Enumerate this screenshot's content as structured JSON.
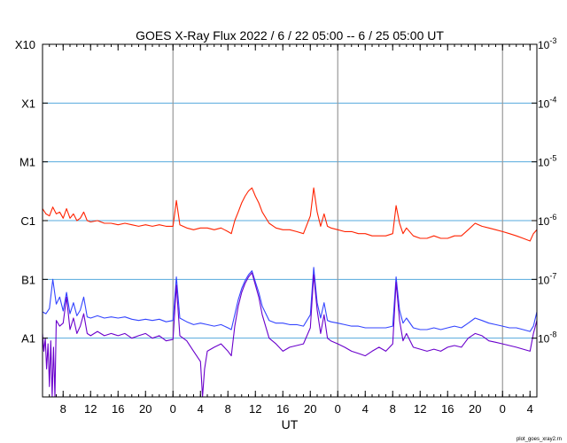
{
  "chart_data": {
    "type": "line",
    "title": "GOES X-Ray Flux   2022  /  6  /  22    05:00 --   6  /  25    05:00    UT",
    "xlabel": "UT",
    "footer": "plot_goes_xray2.rn",
    "x_range_hours": [
      0,
      72
    ],
    "y_scale": "log",
    "ylim": [
      1e-09,
      0.001
    ],
    "grid": true,
    "day_separators_hours": [
      19,
      43,
      67
    ],
    "x_ticks": [
      {
        "h": 3,
        "label": "8"
      },
      {
        "h": 7,
        "label": "12"
      },
      {
        "h": 11,
        "label": "16"
      },
      {
        "h": 15,
        "label": "20"
      },
      {
        "h": 19,
        "label": "0"
      },
      {
        "h": 23,
        "label": "4"
      },
      {
        "h": 27,
        "label": "8"
      },
      {
        "h": 31,
        "label": "12"
      },
      {
        "h": 35,
        "label": "16"
      },
      {
        "h": 39,
        "label": "20"
      },
      {
        "h": 43,
        "label": "0"
      },
      {
        "h": 47,
        "label": "4"
      },
      {
        "h": 51,
        "label": "8"
      },
      {
        "h": 55,
        "label": "12"
      },
      {
        "h": 59,
        "label": "16"
      },
      {
        "h": 63,
        "label": "20"
      },
      {
        "h": 67,
        "label": "0"
      },
      {
        "h": 71,
        "label": "4"
      }
    ],
    "class_labels": [
      {
        "v": 0.001,
        "label": "X10"
      },
      {
        "v": 0.0001,
        "label": "X1"
      },
      {
        "v": 1e-05,
        "label": "M1"
      },
      {
        "v": 1e-06,
        "label": "C1"
      },
      {
        "v": 1e-07,
        "label": "B1"
      },
      {
        "v": 1e-08,
        "label": "A1"
      }
    ],
    "right_labels": [
      {
        "v": 0.001,
        "exp": "-3"
      },
      {
        "v": 0.0001,
        "exp": "-4"
      },
      {
        "v": 1e-05,
        "exp": "-5"
      },
      {
        "v": 1e-06,
        "exp": "-6"
      },
      {
        "v": 1e-07,
        "exp": "-7"
      },
      {
        "v": 1e-08,
        "exp": "-8"
      }
    ],
    "right_base": "10",
    "series": [
      {
        "color": "#ff2200",
        "x": [
          0,
          0.5,
          1,
          1.5,
          2,
          2.5,
          3,
          3.5,
          4,
          4.5,
          5,
          5.5,
          6,
          6.5,
          7,
          8,
          9,
          10,
          11,
          12,
          13,
          14,
          15,
          16,
          17,
          18,
          19,
          19.5,
          20,
          21,
          22,
          23,
          24,
          25,
          26,
          27,
          27.5,
          28,
          28.5,
          29,
          29.5,
          30,
          30.5,
          31,
          31.5,
          32,
          33,
          34,
          35,
          36,
          37,
          38,
          39,
          39.5,
          40,
          40.5,
          41,
          41.5,
          42,
          43,
          44,
          45,
          46,
          47,
          48,
          49,
          50,
          51,
          51.5,
          52,
          52.5,
          53,
          54,
          55,
          56,
          57,
          58,
          59,
          60,
          61,
          62,
          63,
          64,
          65,
          66,
          67,
          68,
          69,
          70,
          71,
          71.5,
          72
        ],
        "y": [
          1.6e-06,
          1.3e-06,
          1.2e-06,
          1.7e-06,
          1.3e-06,
          1.4e-06,
          1.1e-06,
          1.6e-06,
          1.1e-06,
          1.3e-06,
          1e-06,
          1.1e-06,
          1.4e-06,
          1e-06,
          9.5e-07,
          1e-06,
          9e-07,
          9e-07,
          8.5e-07,
          9e-07,
          8.5e-07,
          8e-07,
          8.5e-07,
          8e-07,
          8.5e-07,
          8e-07,
          8e-07,
          2.2e-06,
          8.5e-07,
          7.5e-07,
          7e-07,
          7.5e-07,
          7.5e-07,
          7e-07,
          7.5e-07,
          6.5e-07,
          6e-07,
          1e-06,
          1.4e-06,
          2e-06,
          2.6e-06,
          3.2e-06,
          3.6e-06,
          2.6e-06,
          2e-06,
          1.4e-06,
          9e-07,
          7.5e-07,
          7e-07,
          7e-07,
          6.5e-07,
          6e-07,
          1.2e-06,
          3.6e-06,
          1.4e-06,
          8e-07,
          1.3e-06,
          8e-07,
          7.5e-07,
          7e-07,
          6.5e-07,
          6.5e-07,
          6e-07,
          6e-07,
          5.5e-07,
          5.5e-07,
          5.5e-07,
          6e-07,
          1.8e-06,
          9e-07,
          6e-07,
          7.5e-07,
          5.5e-07,
          5e-07,
          5e-07,
          5.5e-07,
          5e-07,
          5e-07,
          5.5e-07,
          5.5e-07,
          7e-07,
          9e-07,
          8e-07,
          7.5e-07,
          7e-07,
          6.5e-07,
          6e-07,
          5.5e-07,
          5e-07,
          4.5e-07,
          6e-07,
          7e-07
        ]
      },
      {
        "color": "#3344ff",
        "x": [
          0,
          0.5,
          1,
          1.5,
          2,
          2.5,
          3,
          3.5,
          4,
          4.5,
          5,
          5.5,
          6,
          6.5,
          7,
          8,
          9,
          10,
          11,
          12,
          13,
          14,
          15,
          16,
          17,
          18,
          19,
          19.5,
          20,
          21,
          22,
          23,
          24,
          25,
          26,
          27,
          27.5,
          28,
          28.5,
          29,
          29.5,
          30,
          30.5,
          31,
          31.5,
          32,
          33,
          34,
          35,
          36,
          37,
          38,
          39,
          39.5,
          40,
          40.5,
          41,
          41.5,
          42,
          43,
          44,
          45,
          46,
          47,
          48,
          49,
          50,
          51,
          51.5,
          52,
          52.5,
          53,
          54,
          55,
          56,
          57,
          58,
          59,
          60,
          61,
          62,
          63,
          64,
          65,
          66,
          67,
          68,
          69,
          70,
          71,
          71.5,
          72
        ],
        "y": [
          2.8e-08,
          2.6e-08,
          3.2e-08,
          1e-07,
          3.8e-08,
          5e-08,
          2.9e-08,
          6e-08,
          2.6e-08,
          4e-08,
          2.4e-08,
          3e-08,
          5e-08,
          2.3e-08,
          2.2e-08,
          2.4e-08,
          2.2e-08,
          2.3e-08,
          2.2e-08,
          2.3e-08,
          2.1e-08,
          2e-08,
          2.1e-08,
          2e-08,
          2.1e-08,
          1.9e-08,
          2e-08,
          1.1e-07,
          2.2e-08,
          1.9e-08,
          1.7e-08,
          1.8e-08,
          1.7e-08,
          1.6e-08,
          1.7e-08,
          1.5e-08,
          1.4e-08,
          2.5e-08,
          4.5e-08,
          7e-08,
          9.5e-08,
          1.2e-07,
          1.4e-07,
          9e-08,
          6e-08,
          3.5e-08,
          2e-08,
          1.8e-08,
          1.8e-08,
          1.7e-08,
          1.7e-08,
          1.6e-08,
          2.5e-08,
          1.6e-07,
          4e-08,
          2.2e-08,
          4e-08,
          2e-08,
          1.9e-08,
          1.8e-08,
          1.7e-08,
          1.6e-08,
          1.6e-08,
          1.5e-08,
          1.5e-08,
          1.5e-08,
          1.5e-08,
          1.6e-08,
          1.1e-07,
          3e-08,
          1.8e-08,
          2.2e-08,
          1.5e-08,
          1.4e-08,
          1.4e-08,
          1.5e-08,
          1.4e-08,
          1.5e-08,
          1.6e-08,
          1.5e-08,
          1.8e-08,
          2.2e-08,
          2e-08,
          1.8e-08,
          1.7e-08,
          1.6e-08,
          1.5e-08,
          1.5e-08,
          1.4e-08,
          1.3e-08,
          1.6e-08,
          2.8e-08
        ]
      },
      {
        "color": "#6a00cc",
        "x": [
          0,
          0.2,
          0.4,
          0.6,
          0.8,
          1,
          1.2,
          1.4,
          1.6,
          1.8,
          2,
          2.5,
          3,
          3.5,
          4,
          4.5,
          5,
          5.5,
          6,
          6.5,
          7,
          8,
          9,
          10,
          11,
          12,
          13,
          14,
          15,
          16,
          17,
          18,
          19,
          19.5,
          20,
          21,
          22,
          23,
          23.3,
          23.6,
          24,
          25,
          26,
          27,
          27.5,
          28,
          28.5,
          29,
          29.5,
          30,
          30.5,
          31,
          31.5,
          32,
          33,
          34,
          35,
          36,
          37,
          38,
          39,
          39.5,
          40,
          40.5,
          41,
          41.5,
          42,
          43,
          44,
          45,
          46,
          47,
          48,
          49,
          50,
          51,
          51.5,
          52,
          52.5,
          53,
          54,
          55,
          56,
          57,
          58,
          59,
          60,
          61,
          62,
          63,
          64,
          65,
          66,
          67,
          68,
          69,
          70,
          71,
          71.5,
          72
        ],
        "y": [
          1.2e-08,
          6e-09,
          1e-08,
          3e-09,
          8e-09,
          1.5e-09,
          9e-09,
          1e-09,
          7e-09,
          1e-09,
          2e-08,
          1.6e-08,
          1.8e-08,
          5e-08,
          1.4e-08,
          2.2e-08,
          1.2e-08,
          1.6e-08,
          2.6e-08,
          1.2e-08,
          1.1e-08,
          1.3e-08,
          1.1e-08,
          1.2e-08,
          1.1e-08,
          1.2e-08,
          1e-08,
          1.1e-08,
          1.2e-08,
          1e-08,
          1.1e-08,
          9e-09,
          9.5e-09,
          8e-08,
          1.1e-08,
          9e-09,
          6e-09,
          4e-09,
          1e-09,
          3e-09,
          6e-09,
          7e-09,
          8e-09,
          6e-09,
          5e-09,
          1.6e-08,
          3.5e-08,
          6e-08,
          8.5e-08,
          1.1e-07,
          1.3e-07,
          8e-08,
          5e-08,
          2.5e-08,
          1e-08,
          8e-09,
          6e-09,
          7e-09,
          7.5e-09,
          8e-09,
          1.5e-08,
          1.2e-07,
          3e-08,
          1.2e-08,
          2.5e-08,
          1e-08,
          9e-09,
          8e-09,
          7e-09,
          6e-09,
          5.5e-09,
          5e-09,
          6e-09,
          7e-09,
          6e-09,
          8e-09,
          9e-08,
          2e-08,
          9e-09,
          1.2e-08,
          7e-09,
          6.5e-09,
          6e-09,
          6.5e-09,
          6e-09,
          7e-09,
          7.5e-09,
          7e-09,
          1e-08,
          1.2e-08,
          1.1e-08,
          9e-09,
          8.5e-09,
          8e-09,
          7.5e-09,
          7e-09,
          6.5e-09,
          6e-09,
          1.2e-08,
          2e-08
        ]
      }
    ]
  }
}
